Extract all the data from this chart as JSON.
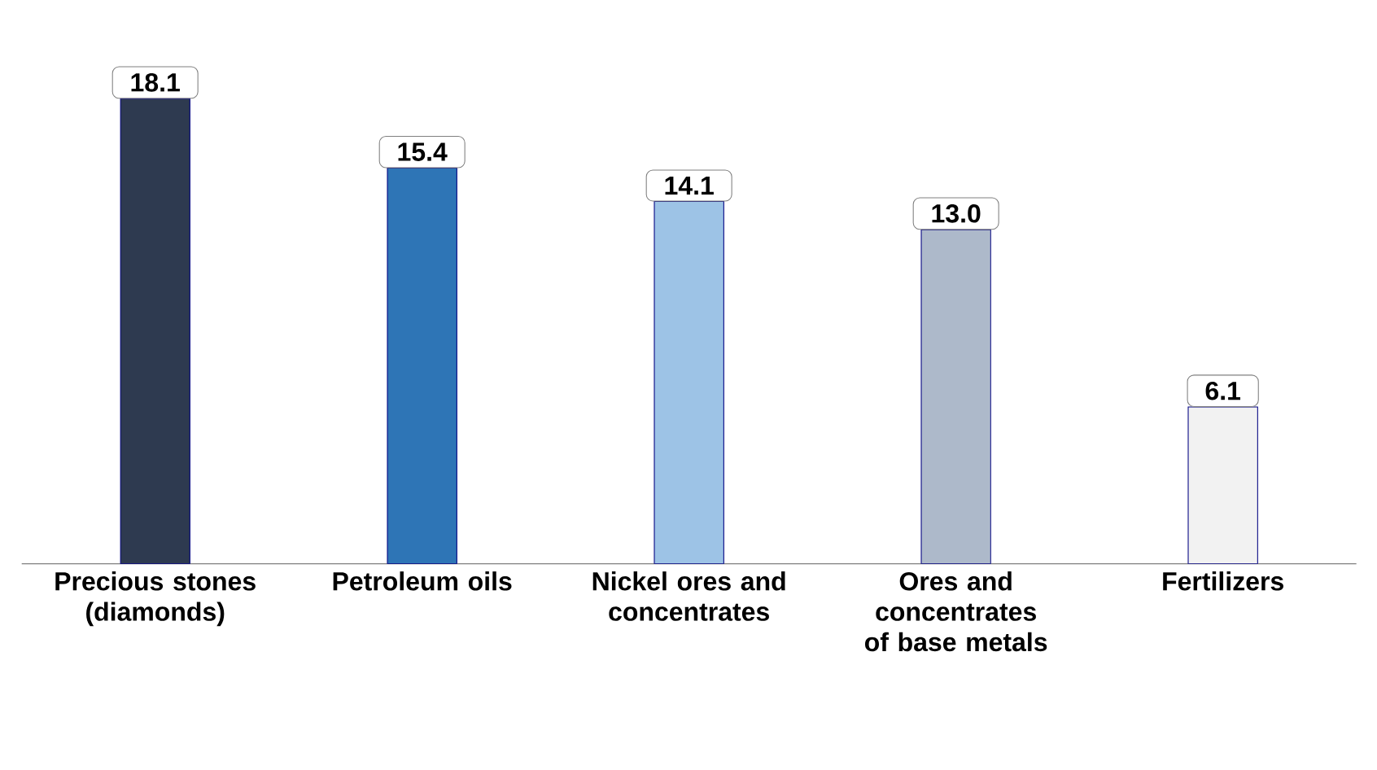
{
  "chart_data": {
    "type": "bar",
    "categories": [
      "Precious stones (diamonds)",
      "Petroleum oils",
      "Nickel ores and concentrates",
      "Ores and concentrates of base metals",
      "Fertilizers"
    ],
    "values": [
      18.1,
      15.4,
      14.1,
      13.0,
      6.1
    ],
    "colors": [
      "#2e3a50",
      "#2e75b6",
      "#9dc3e6",
      "#adb9ca",
      "#f2f2f2"
    ],
    "value_labels": [
      "18.1",
      "15.4",
      "14.1",
      "13.0",
      "6.1"
    ]
  }
}
